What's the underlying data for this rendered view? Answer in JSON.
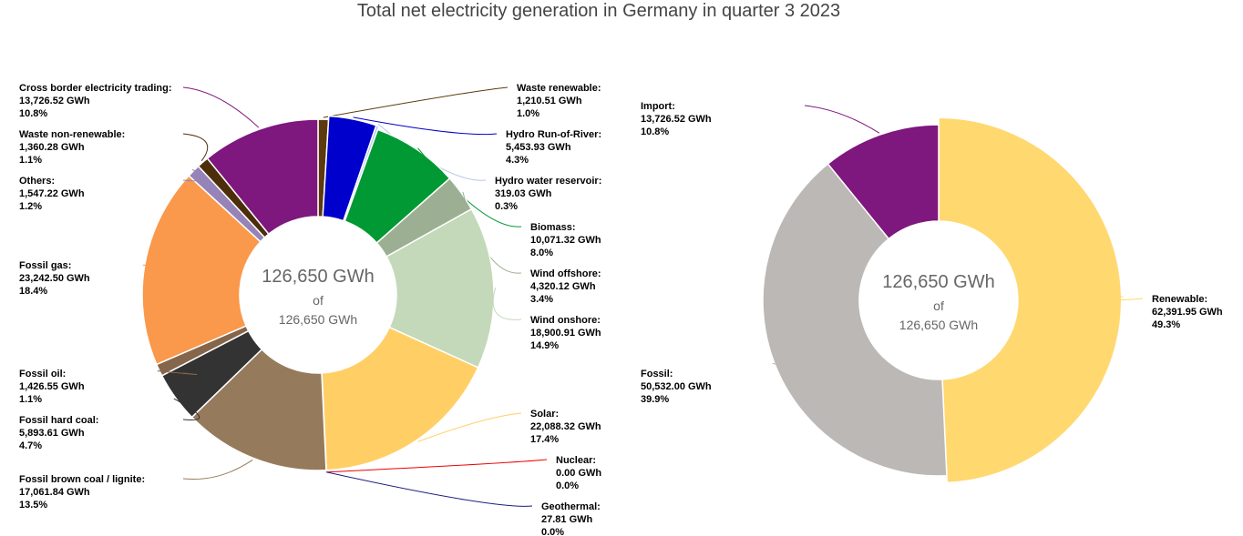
{
  "title": "Total net electricity generation in Germany in quarter 3 2023",
  "center": {
    "total": "126,650 GWh",
    "of": "of",
    "subtotal": "126,650 GWh"
  },
  "chart_data": [
    {
      "type": "pie",
      "variant": "donut",
      "unit": "GWh",
      "slices": [
        {
          "name": "Waste renewable:",
          "value": "1,210.51 GWh",
          "percent": "1.0%",
          "gwh": 1210.51,
          "color": "#5c3a0e"
        },
        {
          "name": "Hydro Run-of-River:",
          "value": "5,453.93 GWh",
          "percent": "4.3%",
          "gwh": 5453.93,
          "color": "#0000cc"
        },
        {
          "name": "Hydro water reservoir:",
          "value": "319.03 GWh",
          "percent": "0.3%",
          "gwh": 319.03,
          "color": "#b6c7e9"
        },
        {
          "name": "Biomass:",
          "value": "10,071.32 GWh",
          "percent": "8.0%",
          "gwh": 10071.32,
          "color": "#009933"
        },
        {
          "name": "Wind offshore:",
          "value": "4,320.12 GWh",
          "percent": "3.4%",
          "gwh": 4320.12,
          "color": "#9caf93"
        },
        {
          "name": "Wind onshore:",
          "value": "18,900.91 GWh",
          "percent": "14.9%",
          "gwh": 18900.91,
          "color": "#c3d9b9"
        },
        {
          "name": "Solar:",
          "value": "22,088.32 GWh",
          "percent": "17.4%",
          "gwh": 22088.32,
          "color": "#ffcf66"
        },
        {
          "name": "Nuclear:",
          "value": "0.00 GWh",
          "percent": "0.0%",
          "gwh": 0.0,
          "color": "#ee0000"
        },
        {
          "name": "Geothermal:",
          "value": "27.81 GWh",
          "percent": "0.0%",
          "gwh": 27.81,
          "color": "#1a1a80"
        },
        {
          "name": "Fossil brown coal / lignite:",
          "value": "17,061.84 GWh",
          "percent": "13.5%",
          "gwh": 17061.84,
          "color": "#967a5c"
        },
        {
          "name": "Fossil hard coal:",
          "value": "5,893.61 GWh",
          "percent": "4.7%",
          "gwh": 5893.61,
          "color": "#333333"
        },
        {
          "name": "Fossil oil:",
          "value": "1,426.55 GWh",
          "percent": "1.1%",
          "gwh": 1426.55,
          "color": "#86664a"
        },
        {
          "name": "Fossil gas:",
          "value": "23,242.50 GWh",
          "percent": "18.4%",
          "gwh": 23242.5,
          "color": "#fa984b"
        },
        {
          "name": "Others:",
          "value": "1,547.22 GWh",
          "percent": "1.2%",
          "gwh": 1547.22,
          "color": "#9683b8"
        },
        {
          "name": "Waste non-renewable:",
          "value": "1,360.28 GWh",
          "percent": "1.1%",
          "gwh": 1360.28,
          "color": "#4d2e0a"
        },
        {
          "name": "Cross border electricity trading:",
          "value": "13,726.52 GWh",
          "percent": "10.8%",
          "gwh": 13726.52,
          "color": "#7e177e"
        }
      ]
    },
    {
      "type": "pie",
      "variant": "donut",
      "unit": "GWh",
      "slices": [
        {
          "name": "Renewable:",
          "value": "62,391.95 GWh",
          "percent": "49.3%",
          "gwh": 62391.95,
          "color": "#ffd870"
        },
        {
          "name": "Fossil:",
          "value": "50,532.00 GWh",
          "percent": "39.9%",
          "gwh": 50532.0,
          "color": "#bbb8b5"
        },
        {
          "name": "Import:",
          "value": "13,726.52 GWh",
          "percent": "10.8%",
          "gwh": 13726.52,
          "color": "#7e177e"
        }
      ]
    }
  ]
}
